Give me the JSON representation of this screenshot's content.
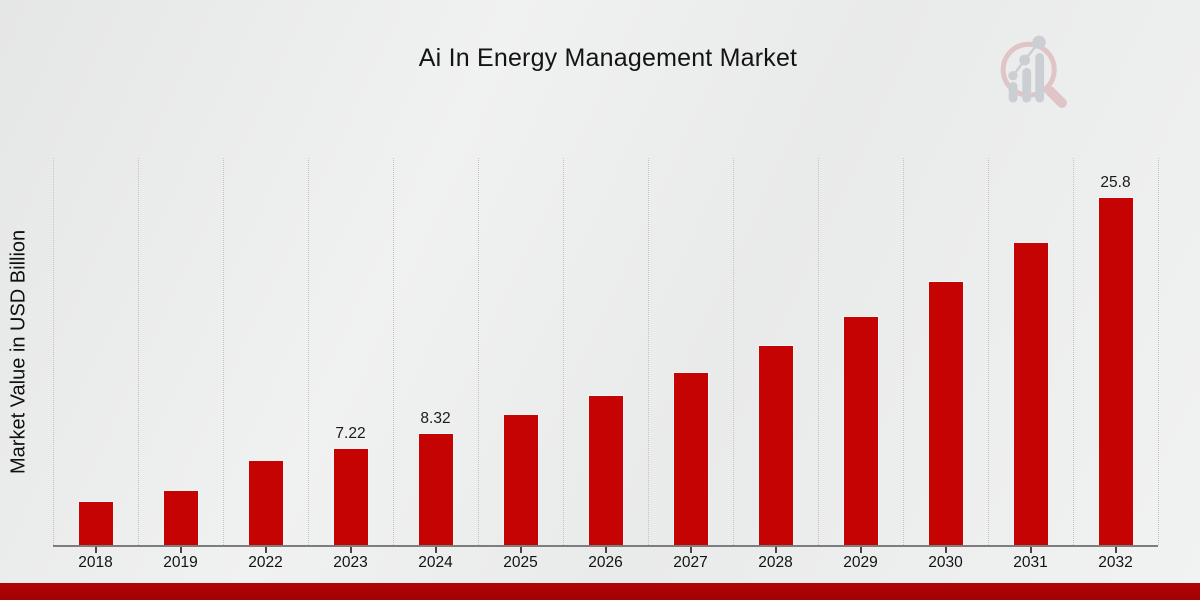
{
  "page": {
    "title": "Ai In Energy Management Market"
  },
  "chart_data": {
    "type": "bar",
    "title": "Ai In Energy Management Market",
    "xlabel": "",
    "ylabel": "Market Value in USD Billion",
    "categories": [
      "2018",
      "2019",
      "2022",
      "2023",
      "2024",
      "2025",
      "2026",
      "2027",
      "2028",
      "2029",
      "2030",
      "2031",
      "2032"
    ],
    "values": [
      3.3,
      4.1,
      6.3,
      7.22,
      8.32,
      9.7,
      11.1,
      12.8,
      14.8,
      17.0,
      19.6,
      22.5,
      25.8
    ],
    "data_labels": [
      "",
      "",
      "",
      "7.22",
      "8.32",
      "",
      "",
      "",
      "",
      "",
      "",
      "",
      "25.8"
    ],
    "ylim": [
      0,
      28.7
    ],
    "grid": "vertical-dotted-only",
    "legend": "none",
    "bar_color": "#c60303",
    "axis_line_color": "#7d7d7d",
    "gridline_color": "#c3c3c3"
  },
  "watermark": {
    "icon": "magnifier-growth-chart-logo",
    "ring_color": "#dfbfc2",
    "bars_color": "#c6cad0"
  },
  "footer": {
    "banner_color": "#b20404"
  }
}
